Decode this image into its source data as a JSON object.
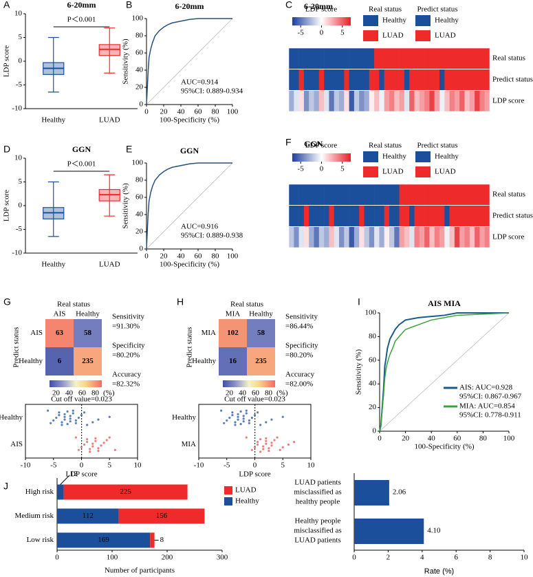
{
  "chart_data": [
    {
      "type": "box",
      "panel": "A",
      "title": "6-20mm",
      "categories": [
        "Healthy",
        "LUAD"
      ],
      "colors": [
        "#1b4f9c",
        "#ee2a2a"
      ],
      "boxes": [
        {
          "min": -6.5,
          "q1": -2.8,
          "median": -1.5,
          "q3": -0.3,
          "max": 5
        },
        {
          "min": -2.5,
          "q1": 1.2,
          "median": 2.5,
          "q3": 3.5,
          "max": 7
        }
      ],
      "ylim": [
        -10,
        10
      ],
      "yticks": [
        -10,
        -5,
        0,
        5,
        10
      ],
      "ylabel": "LDP score",
      "annotation": "P＜0.001"
    },
    {
      "type": "roc",
      "panel": "B",
      "title": "6-20mm",
      "x": [
        0,
        1,
        2,
        3,
        5,
        7,
        10,
        15,
        20,
        25,
        30,
        40,
        50,
        60,
        80,
        100
      ],
      "series": [
        {
          "color": "#2a4f7a",
          "values": [
            0,
            20,
            40,
            55,
            65,
            72,
            80,
            86,
            90,
            93,
            95,
            97,
            99,
            100,
            100,
            100
          ]
        }
      ],
      "xlim": [
        0,
        100
      ],
      "xticks": [
        0,
        20,
        40,
        60,
        80,
        100
      ],
      "ylim": [
        0,
        100
      ],
      "yticks": [
        0,
        20,
        40,
        60,
        80,
        100
      ],
      "xlabel": "100-Specificity (%)",
      "ylabel": "Sensitivity (%)",
      "annotations": [
        "AUC=0.914",
        "95%CI: 0.889-0.934"
      ]
    },
    {
      "type": "heatmap_strip",
      "panel": "C",
      "title": "6-20mm",
      "series": [
        {
          "name": "Real status",
          "values": [
            0,
            0,
            0,
            0,
            0,
            0,
            0,
            0,
            0,
            0,
            0,
            0,
            0,
            0,
            0,
            0,
            0,
            1,
            1,
            1,
            1,
            1,
            1,
            1,
            1,
            1,
            1,
            1,
            1,
            1,
            1,
            1,
            1,
            1,
            1,
            1,
            1,
            1,
            1,
            1
          ]
        },
        {
          "name": "Predict status",
          "values": [
            0,
            0,
            1,
            0,
            0,
            0,
            1,
            0,
            0,
            0,
            0,
            1,
            0,
            0,
            0,
            0,
            1,
            1,
            0,
            1,
            1,
            1,
            1,
            0,
            1,
            1,
            1,
            1,
            1,
            1,
            0,
            1,
            1,
            1,
            1,
            1,
            1,
            1,
            1,
            1
          ]
        },
        {
          "name": "LDP score",
          "values": [
            -3,
            -1,
            1,
            -4,
            -2,
            -3,
            2,
            -1,
            -5,
            -2,
            -3,
            1,
            -6,
            -2,
            -4,
            -3,
            0.5,
            2,
            -0.5,
            3,
            4,
            2,
            3,
            -1,
            5,
            2,
            3,
            4,
            6,
            3,
            -0.5,
            2,
            4,
            3,
            5,
            2,
            3,
            6,
            4,
            3
          ]
        }
      ],
      "class_colors": [
        "#1b4f9c",
        "#ee2a2a"
      ],
      "clim": [
        -7,
        7
      ],
      "colorbar": {
        "title": "LDP score",
        "ticks": [
          -5,
          0,
          5
        ]
      },
      "legends": [
        {
          "title": "Real status",
          "labels": [
            "Healthy",
            "LUAD"
          ]
        },
        {
          "title": "Predict status",
          "labels": [
            "Healthy",
            "LUAD"
          ]
        }
      ]
    },
    {
      "type": "box",
      "panel": "D",
      "title": "GGN",
      "categories": [
        "Healthy",
        "LUAD"
      ],
      "colors": [
        "#1b4f9c",
        "#ee2a2a"
      ],
      "boxes": [
        {
          "min": -6.5,
          "q1": -2.8,
          "median": -1.5,
          "q3": -0.4,
          "max": 5
        },
        {
          "min": -2.2,
          "q1": 1.0,
          "median": 2.3,
          "q3": 3.4,
          "max": 6.5
        }
      ],
      "ylim": [
        -10,
        10
      ],
      "yticks": [
        -10,
        -5,
        0,
        5,
        10
      ],
      "ylabel": "LDP score",
      "annotation": "P＜0.001"
    },
    {
      "type": "roc",
      "panel": "E",
      "title": "GGN",
      "x": [
        0,
        1,
        2,
        3,
        5,
        7,
        10,
        15,
        20,
        25,
        30,
        40,
        50,
        60,
        80,
        100
      ],
      "series": [
        {
          "color": "#2a4f7a",
          "values": [
            0,
            22,
            42,
            56,
            66,
            73,
            80,
            86,
            90,
            93,
            95,
            97,
            99,
            100,
            100,
            100
          ]
        }
      ],
      "xlim": [
        0,
        100
      ],
      "xticks": [
        0,
        20,
        40,
        60,
        80,
        100
      ],
      "ylim": [
        0,
        100
      ],
      "yticks": [
        0,
        20,
        40,
        60,
        80,
        100
      ],
      "xlabel": "100-Specificity (%)",
      "ylabel": "Sensitivity (%)",
      "annotations": [
        "AUC=0.916",
        "95%CI: 0.889-0.938"
      ]
    },
    {
      "type": "heatmap_strip",
      "panel": "F",
      "title": "GGN",
      "series": [
        {
          "name": "Real status",
          "values": [
            0,
            0,
            0,
            0,
            0,
            0,
            0,
            0,
            0,
            0,
            0,
            0,
            0,
            0,
            0,
            0,
            0,
            0,
            0,
            0,
            0,
            0,
            1,
            1,
            1,
            1,
            1,
            1,
            1,
            1,
            1,
            1,
            1,
            1,
            1,
            1,
            1,
            1,
            1,
            1
          ]
        },
        {
          "name": "Predict status",
          "values": [
            0,
            0,
            0,
            1,
            0,
            0,
            0,
            0,
            1,
            0,
            0,
            0,
            0,
            0,
            1,
            0,
            0,
            0,
            0,
            1,
            0,
            0,
            1,
            1,
            0,
            1,
            1,
            1,
            1,
            1,
            1,
            0,
            1,
            1,
            1,
            1,
            1,
            1,
            1,
            1
          ]
        },
        {
          "name": "LDP score",
          "values": [
            -2,
            -4,
            -1,
            1,
            -3,
            -5,
            -2,
            -3,
            2,
            -1,
            -4,
            -2,
            -6,
            -3,
            1,
            -2,
            -4,
            -1,
            -3,
            0.5,
            -2,
            -5,
            3,
            2,
            -1,
            4,
            3,
            5,
            2,
            4,
            3,
            -0.5,
            2,
            6,
            3,
            4,
            2,
            5,
            3,
            4
          ]
        }
      ],
      "class_colors": [
        "#1b4f9c",
        "#ee2a2a"
      ],
      "clim": [
        -7,
        7
      ],
      "colorbar": {
        "title": "LDP score",
        "ticks": [
          -5,
          0,
          5
        ]
      },
      "legends": [
        {
          "title": "Real status",
          "labels": [
            "Healthy",
            "LUAD"
          ]
        },
        {
          "title": "Predict status",
          "labels": [
            "Healthy",
            "LUAD"
          ]
        }
      ]
    },
    {
      "type": "confusion",
      "panel": "G",
      "xlabel": "Real status",
      "ylabel": "Predict status",
      "columns": [
        "AIS",
        "Healthy"
      ],
      "rows": [
        "AIS",
        "Healthy"
      ],
      "matrix": [
        [
          63,
          58
        ],
        [
          6,
          235
        ]
      ],
      "stats": [
        [
          "Sensitivity",
          "=91.30%"
        ],
        [
          "Specificity",
          "=80.20%"
        ],
        [
          "Accuracy",
          "=82.32%"
        ]
      ],
      "clim": [
        10,
        90
      ],
      "cticks": [
        20,
        40,
        60,
        80
      ],
      "cunit": "(%)"
    },
    {
      "type": "strip",
      "title": "Cut off value=0.023",
      "cutoff": 0.023,
      "categories": [
        "Healthy",
        "AIS"
      ],
      "colors": [
        "#2f5fa8",
        "#ee5a5a"
      ],
      "points": [
        [
          -6,
          -5.5,
          -5,
          -4.5,
          -4,
          -4,
          -3.5,
          -3.5,
          -3,
          -3,
          -3,
          -2.5,
          -2.5,
          -2,
          -2,
          -2,
          -1.5,
          -1.5,
          -1,
          -1,
          -0.5,
          0,
          0.5,
          1,
          2,
          3,
          5
        ],
        [
          -1,
          -0.5,
          0,
          0.5,
          1,
          1,
          1.5,
          1.5,
          2,
          2,
          2.5,
          2.5,
          3,
          3,
          3.5,
          4,
          4.5,
          5,
          6
        ]
      ],
      "xlim": [
        -10,
        10
      ],
      "xticks": [
        -10,
        -5,
        0,
        5,
        10
      ],
      "xlabel": "LDP score"
    },
    {
      "type": "confusion",
      "panel": "H",
      "xlabel": "Real status",
      "ylabel": "Predict status",
      "columns": [
        "MIA",
        "Healthy"
      ],
      "rows": [
        "MIA",
        "Healthy"
      ],
      "matrix": [
        [
          102,
          58
        ],
        [
          16,
          235
        ]
      ],
      "stats": [
        [
          "Sensitivity",
          "=86.44%"
        ],
        [
          "Specificity",
          "=80.20%"
        ],
        [
          "Accuracy",
          "=82.00%"
        ]
      ],
      "clim": [
        10,
        90
      ],
      "cticks": [
        20,
        40,
        60,
        80
      ],
      "cunit": "(%)"
    },
    {
      "type": "strip",
      "title": "Cut off value=0.023",
      "cutoff": 0.023,
      "categories": [
        "Healthy",
        "MIA"
      ],
      "colors": [
        "#2f5fa8",
        "#ee5a5a"
      ],
      "points": [
        [
          -6,
          -5.5,
          -5,
          -4.5,
          -4,
          -4,
          -3.5,
          -3.5,
          -3,
          -3,
          -3,
          -2.5,
          -2.5,
          -2,
          -2,
          -2,
          -1.5,
          -1.5,
          -1,
          -1,
          -0.5,
          0,
          0.5,
          1,
          2,
          3,
          5
        ],
        [
          -1.5,
          -0.5,
          0,
          0.5,
          0.5,
          1,
          1,
          1.5,
          1.5,
          2,
          2,
          2,
          2.5,
          2.5,
          3,
          3,
          3.5,
          4,
          4.5,
          5,
          6,
          7
        ]
      ],
      "xlim": [
        -10,
        10
      ],
      "xticks": [
        -10,
        -5,
        0,
        5,
        10
      ],
      "xlabel": "LDP score"
    },
    {
      "type": "roc",
      "panel": "I",
      "title": "AIS  MIA",
      "x": [
        0,
        1,
        2,
        3,
        4,
        5,
        6,
        8,
        10,
        12,
        15,
        20,
        25,
        30,
        40,
        50,
        60,
        100
      ],
      "series": [
        {
          "name": "AIS: AUC=0.928",
          "ci": "95%CI: 0.867-0.967",
          "color": "#1c5a8c",
          "values": [
            0,
            5,
            20,
            35,
            55,
            62,
            70,
            78,
            82,
            86,
            90,
            94,
            95,
            96,
            97,
            98,
            100,
            100
          ]
        },
        {
          "name": "MIA: AUC=0.854",
          "ci": "95%CI: 0.778-0.911",
          "color": "#3aa33a",
          "values": [
            0,
            5,
            18,
            30,
            45,
            53,
            58,
            65,
            70,
            76,
            80,
            86,
            88,
            90,
            94,
            96,
            98,
            100
          ]
        }
      ],
      "xlim": [
        0,
        100
      ],
      "xticks": [
        0,
        20,
        40,
        60,
        80,
        100
      ],
      "ylim": [
        0,
        100
      ],
      "yticks": [
        0,
        20,
        40,
        60,
        80,
        100
      ],
      "xlabel": "100-Specificity (%)",
      "ylabel": "Sensitivity (%)"
    },
    {
      "type": "stacked_hbar",
      "panel": "J",
      "categories": [
        "High risk",
        "Medium risk",
        "Low risk"
      ],
      "series": [
        {
          "name": "Healthy",
          "color": "#1b4f9c",
          "values": [
            12,
            112,
            169
          ]
        },
        {
          "name": "LUAD",
          "color": "#ee2a2a",
          "values": [
            225,
            156,
            8
          ]
        }
      ],
      "xlim": [
        0,
        300
      ],
      "xticks": [
        0,
        100,
        200,
        300
      ],
      "xlabel": "Number of participants"
    },
    {
      "type": "hbar",
      "categories": [
        [
          "LUAD patients",
          "misclassified as",
          "healthy people"
        ],
        [
          "Healthy people",
          "misclassified as",
          "LUAD patients"
        ]
      ],
      "values": [
        2.06,
        4.1
      ],
      "value_labels": [
        "2.06",
        "4.10"
      ],
      "color": "#1b4f9c",
      "xlim": [
        0,
        10
      ],
      "xticks": [
        0,
        2,
        4,
        6,
        8,
        10
      ],
      "xlabel": "Rate (%)"
    }
  ]
}
